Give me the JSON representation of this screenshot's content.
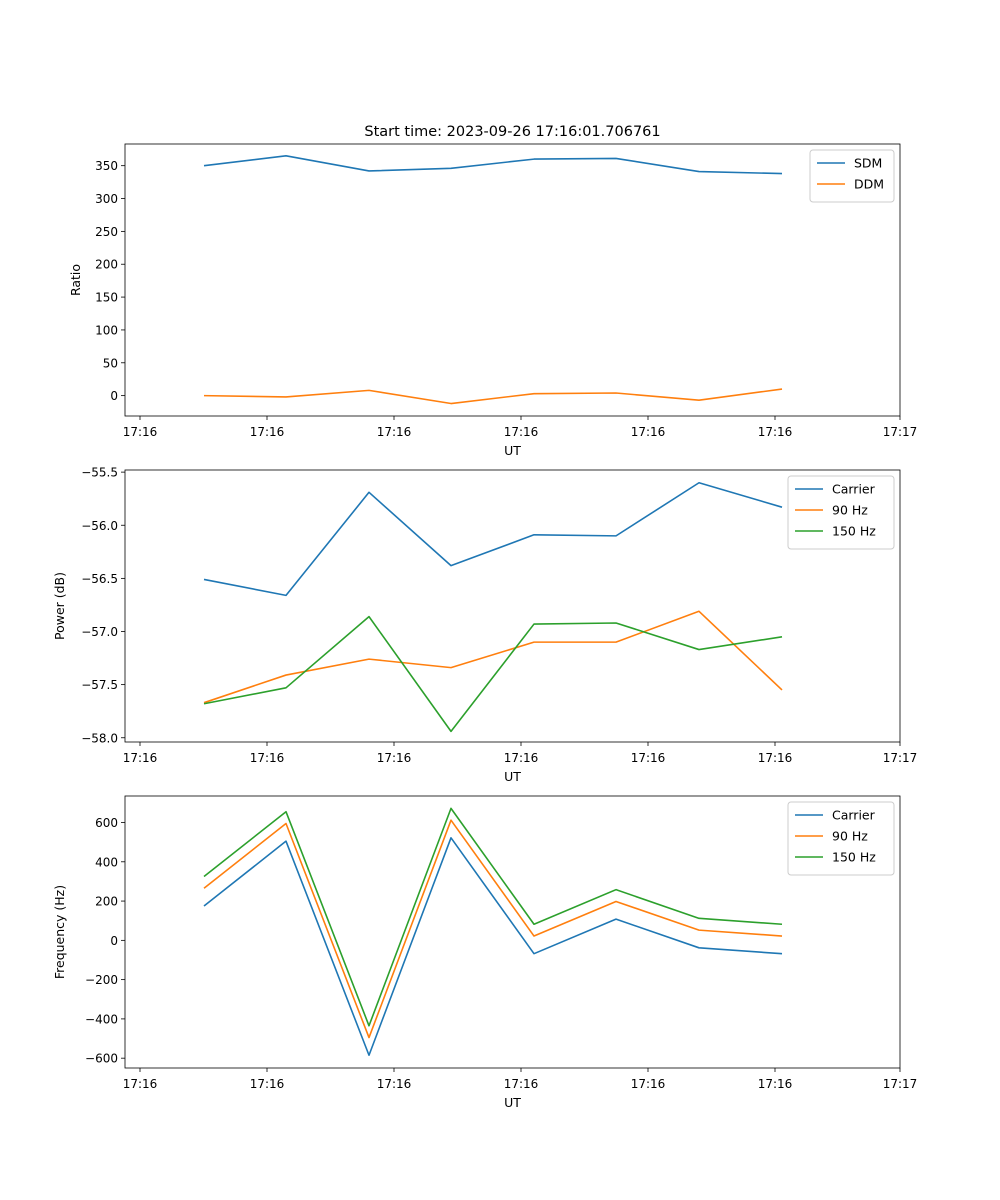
{
  "chart_data": [
    {
      "type": "line",
      "title": "Start time: 2023-09-26 17:16:01.706761",
      "xlabel": "UT",
      "ylabel": "Ratio",
      "x_tick_labels": [
        "17:16",
        "17:16",
        "17:16",
        "17:16",
        "17:16",
        "17:16",
        "17:17"
      ],
      "ylim": [
        -31,
        383
      ],
      "y_ticks": [
        0,
        50,
        100,
        150,
        200,
        250,
        300,
        350
      ],
      "legend_position": "top-right",
      "series": [
        {
          "name": "SDM",
          "color": "#1f77b4",
          "values": [
            350,
            365,
            342,
            346,
            360,
            361,
            341,
            338
          ]
        },
        {
          "name": "DDM",
          "color": "#ff7f0e",
          "values": [
            0,
            -2,
            8,
            -12,
            3,
            4,
            -7,
            10
          ]
        }
      ]
    },
    {
      "type": "line",
      "title": "",
      "xlabel": "UT",
      "ylabel": "Power (dB)",
      "x_tick_labels": [
        "17:16",
        "17:16",
        "17:16",
        "17:16",
        "17:16",
        "17:16",
        "17:17"
      ],
      "ylim": [
        -58.04,
        -55.48
      ],
      "y_ticks": [
        -58.0,
        -57.5,
        -57.0,
        -56.5,
        -56.0,
        -55.5
      ],
      "legend_position": "top-right",
      "series": [
        {
          "name": "Carrier",
          "color": "#1f77b4",
          "values": [
            -56.51,
            -56.66,
            -55.69,
            -56.38,
            -56.09,
            -56.1,
            -55.6,
            -55.83
          ]
        },
        {
          "name": "90 Hz",
          "color": "#ff7f0e",
          "values": [
            -57.67,
            -57.41,
            -57.26,
            -57.34,
            -57.1,
            -57.1,
            -56.81,
            -57.55
          ]
        },
        {
          "name": "150 Hz",
          "color": "#2ca02c",
          "values": [
            -57.68,
            -57.53,
            -56.86,
            -57.94,
            -56.93,
            -56.92,
            -57.17,
            -57.05
          ]
        }
      ]
    },
    {
      "type": "line",
      "title": "",
      "xlabel": "UT",
      "ylabel": "Frequency (Hz)",
      "x_tick_labels": [
        "17:16",
        "17:16",
        "17:16",
        "17:16",
        "17:16",
        "17:16",
        "17:17"
      ],
      "ylim": [
        -650,
        735
      ],
      "y_ticks": [
        -600,
        -400,
        -200,
        0,
        200,
        400,
        600
      ],
      "legend_position": "top-right",
      "series": [
        {
          "name": "Carrier",
          "color": "#1f77b4",
          "values": [
            175,
            505,
            -585,
            522,
            -68,
            108,
            -38,
            -68
          ]
        },
        {
          "name": "90 Hz",
          "color": "#ff7f0e",
          "values": [
            265,
            595,
            -495,
            612,
            22,
            198,
            52,
            22
          ]
        },
        {
          "name": "150 Hz",
          "color": "#2ca02c",
          "values": [
            325,
            655,
            -435,
            672,
            82,
            258,
            112,
            82
          ]
        }
      ]
    }
  ]
}
